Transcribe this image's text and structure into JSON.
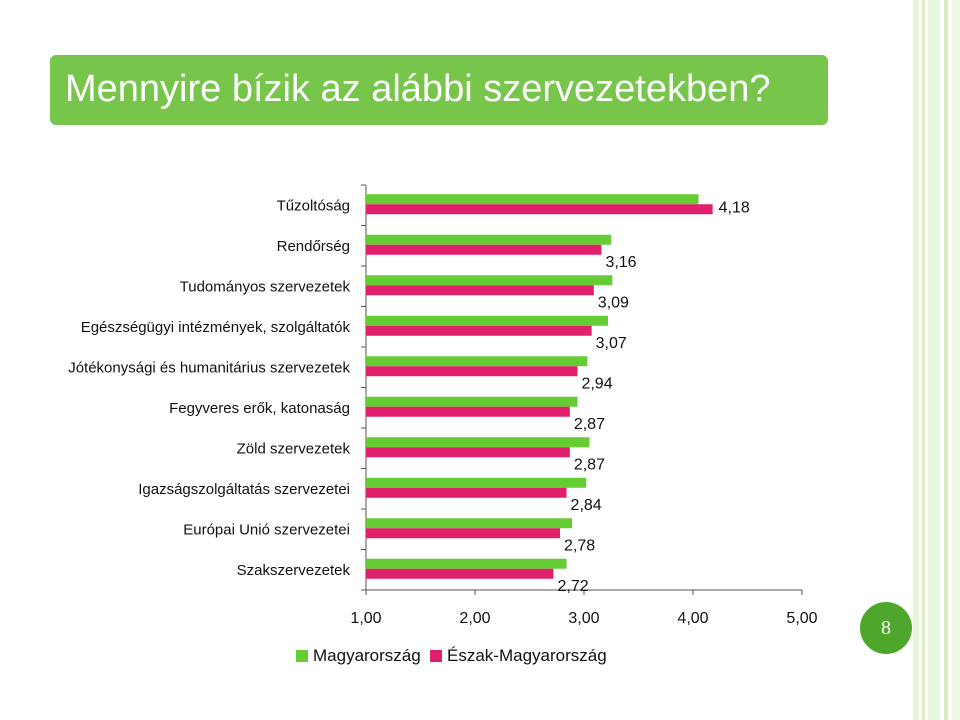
{
  "slide": {
    "title": "Mennyire bízik az alábbi szervezetekben?",
    "page_number": "8",
    "accent_color": "#77c64b"
  },
  "chart_data": {
    "type": "bar",
    "orientation": "horizontal",
    "title": "",
    "xlabel": "",
    "ylabel": "",
    "categories": [
      "Tűzoltóság",
      "Rendőrség",
      "Tudományos szervezetek",
      "Egészségügyi intézmények, szolgáltatók",
      "Jótékonysági és humanitárius szervezetek",
      "Fegyveres erők, katonaság",
      "Zöld szervezetek",
      "Igazságszolgáltatás szervezetei",
      "Európai Unió szervezetei",
      "Szakszervezetek"
    ],
    "series": [
      {
        "name": "Magyarország",
        "color": "#66cc33",
        "values": [
          4.05,
          3.25,
          3.26,
          3.22,
          3.03,
          2.94,
          3.05,
          3.02,
          2.89,
          2.84
        ]
      },
      {
        "name": "Észak-Magyarország",
        "color": "#e0206a",
        "values": [
          4.18,
          3.16,
          3.09,
          3.07,
          2.94,
          2.87,
          2.87,
          2.84,
          2.78,
          2.72
        ],
        "labels": [
          "4,18",
          "3,16",
          "3,09",
          "3,07",
          "2,94",
          "2,87",
          "2,87",
          "2,84",
          "2,78",
          "2,72"
        ]
      }
    ],
    "xlim": [
      1,
      5
    ],
    "xticks": [
      1,
      2,
      3,
      4,
      5
    ],
    "xtick_labels": [
      "1,00",
      "2,00",
      "3,00",
      "4,00",
      "5,00"
    ],
    "grid": false,
    "legend_position": "bottom"
  }
}
